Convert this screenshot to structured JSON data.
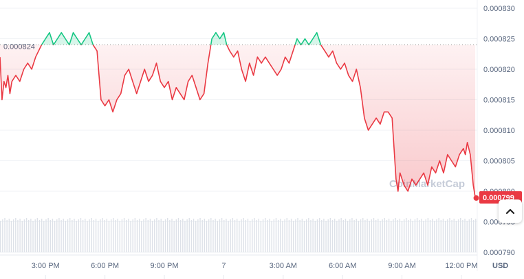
{
  "chart_data": {
    "type": "line",
    "currency": "USD",
    "reference_price": 0.000824,
    "reference_label": "0.000824",
    "current_price": 0.000799,
    "current_label": "0.000799",
    "watermark": "CoinMarketCap",
    "ylim": [
      0.00079,
      0.00083
    ],
    "yticks": [
      "0.000830",
      "0.000825",
      "0.000820",
      "0.000815",
      "0.000810",
      "0.000805",
      "0.000800",
      "0.000795",
      "0.000790"
    ],
    "yticks_values": [
      0.00083,
      0.000825,
      0.00082,
      0.000815,
      0.00081,
      0.000805,
      0.0008,
      0.000795,
      0.00079
    ],
    "x_range_hours": [
      12.7,
      36.8
    ],
    "xticks": [
      {
        "label": "3:00 PM",
        "hour": 15
      },
      {
        "label": "6:00 PM",
        "hour": 18
      },
      {
        "label": "9:00 PM",
        "hour": 21
      },
      {
        "label": "7",
        "hour": 24
      },
      {
        "label": "3:00 AM",
        "hour": 27
      },
      {
        "label": "6:00 AM",
        "hour": 30
      },
      {
        "label": "9:00 AM",
        "hour": 33
      },
      {
        "label": "12:00 PM",
        "hour": 36
      }
    ],
    "unit_label": "USD",
    "up_color": "#16c784",
    "down_color": "#ea3943",
    "series": [
      {
        "x": [
          12.7,
          12.8,
          12.9,
          13.0,
          13.1,
          13.2,
          13.3,
          13.5,
          13.7,
          13.9,
          14.1,
          14.3,
          14.5,
          14.8,
          15.0,
          15.2,
          15.4,
          15.6,
          15.8,
          16.0,
          16.2,
          16.4,
          16.6,
          16.8,
          17.0,
          17.2,
          17.4,
          17.6,
          17.8,
          18.0,
          18.2,
          18.4,
          18.6,
          18.8,
          19.0,
          19.2,
          19.4,
          19.6,
          19.8,
          20.0,
          20.2,
          20.4,
          20.6,
          20.8,
          21.0,
          21.2,
          21.4,
          21.6,
          21.8,
          22.0,
          22.2,
          22.4,
          22.6,
          22.8,
          23.0,
          23.2,
          23.4,
          23.6,
          23.8,
          24.0,
          24.15,
          24.3,
          24.5,
          24.7,
          24.9,
          25.1,
          25.3,
          25.5,
          25.7,
          25.9,
          26.1,
          26.3,
          26.5,
          26.7,
          26.9,
          27.1,
          27.3,
          27.5,
          27.7,
          27.9,
          28.1,
          28.3,
          28.5,
          28.7,
          28.9,
          29.1,
          29.3,
          29.5,
          29.7,
          29.9,
          30.1,
          30.3,
          30.5,
          30.7,
          30.9,
          31.1,
          31.3,
          31.5,
          31.7,
          31.9,
          32.1,
          32.3,
          32.5,
          32.7,
          32.8,
          32.9,
          33.1,
          33.3,
          33.5,
          33.7,
          33.9,
          34.1,
          34.3,
          34.5,
          34.7,
          34.9,
          35.1,
          35.3,
          35.5,
          35.7,
          35.9,
          36.1,
          36.2,
          36.3,
          36.45,
          36.6,
          36.7
        ],
        "y": [
          0.000822,
          0.000815,
          0.000818,
          0.000817,
          0.000819,
          0.000816,
          0.000818,
          0.000819,
          0.000818,
          0.00082,
          0.000821,
          0.00082,
          0.000822,
          0.000824,
          0.000825,
          0.000826,
          0.000824,
          0.000825,
          0.000826,
          0.000825,
          0.000824,
          0.000826,
          0.000825,
          0.000824,
          0.000825,
          0.000826,
          0.000824,
          0.000823,
          0.000815,
          0.000814,
          0.000815,
          0.000813,
          0.000815,
          0.000816,
          0.000819,
          0.00082,
          0.000818,
          0.000816,
          0.000818,
          0.00082,
          0.000818,
          0.000819,
          0.000821,
          0.000818,
          0.000817,
          0.000818,
          0.000815,
          0.000817,
          0.000816,
          0.000815,
          0.000818,
          0.000819,
          0.000817,
          0.000815,
          0.000816,
          0.000821,
          0.000825,
          0.000826,
          0.000825,
          0.000826,
          0.000824,
          0.000823,
          0.000822,
          0.000823,
          0.00082,
          0.000818,
          0.000821,
          0.000819,
          0.000822,
          0.000821,
          0.000822,
          0.000821,
          0.00082,
          0.000819,
          0.00082,
          0.000822,
          0.000821,
          0.000823,
          0.000825,
          0.000824,
          0.000825,
          0.000824,
          0.000825,
          0.000826,
          0.000824,
          0.000823,
          0.000822,
          0.000823,
          0.000821,
          0.00082,
          0.000821,
          0.000819,
          0.000818,
          0.00082,
          0.000817,
          0.000812,
          0.00081,
          0.000811,
          0.000812,
          0.000811,
          0.000813,
          0.000813,
          0.000812,
          0.000802,
          0.0008,
          0.000803,
          0.000801,
          0.0008,
          0.000802,
          0.000801,
          0.000802,
          0.000803,
          0.000801,
          0.000804,
          0.000803,
          0.000805,
          0.000803,
          0.000806,
          0.000805,
          0.000804,
          0.000806,
          0.000807,
          0.000806,
          0.000808,
          0.000806,
          0.000801,
          0.000799
        ]
      }
    ],
    "volume": {
      "x_start_hour": 12.7,
      "x_end_hour": 36.7,
      "bar_count": 220
    }
  },
  "chart": {
    "expand_icon": "chevron-up-icon"
  }
}
